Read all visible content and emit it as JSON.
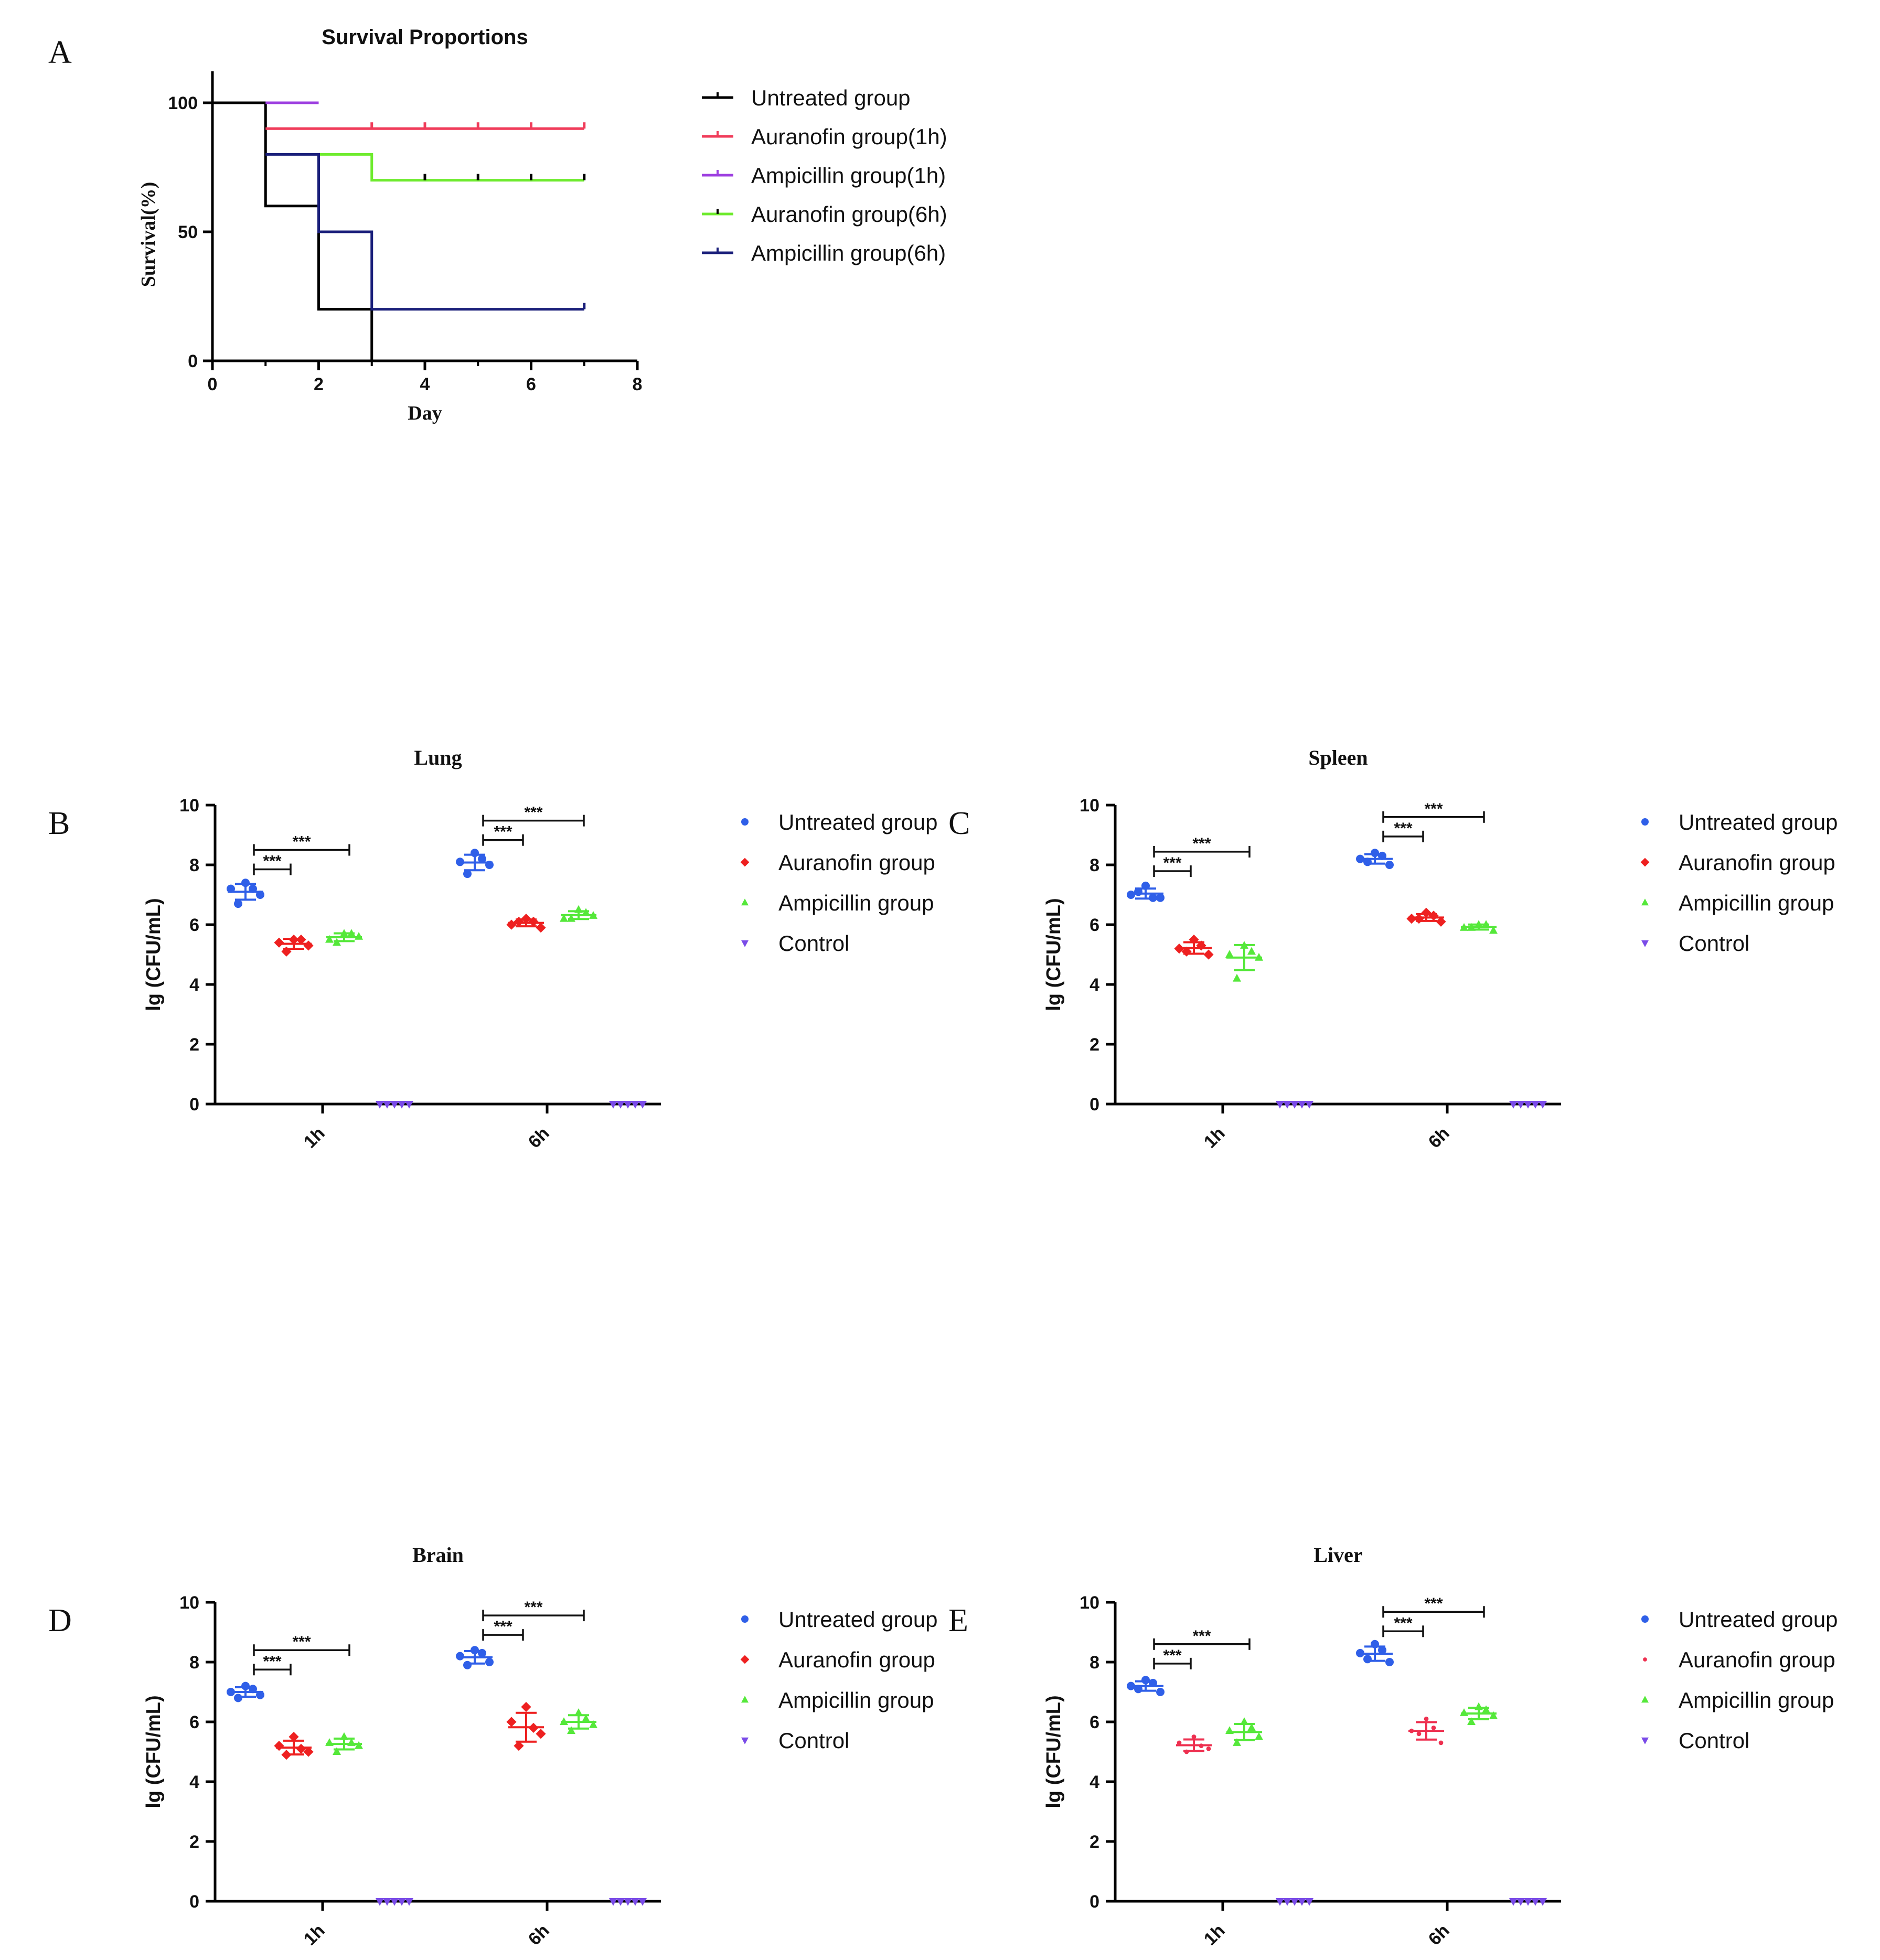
{
  "chart_data": [
    {
      "panel": "A",
      "type": "line",
      "title": "Survival Proportions",
      "xlabel": "Day",
      "ylabel": "Survival(%)",
      "xlim": [
        0,
        8
      ],
      "ylim": [
        0,
        100
      ],
      "xticks": [
        "0",
        "2",
        "4",
        "6",
        "8"
      ],
      "yticks": [
        "0",
        "50",
        "100"
      ],
      "series": [
        {
          "name": "Untreated group",
          "color": "#000000",
          "steps": [
            [
              0,
              100
            ],
            [
              1,
              60
            ],
            [
              2,
              20
            ],
            [
              3,
              0
            ]
          ],
          "censor": []
        },
        {
          "name": "Auranofin group(1h)",
          "color": "#f03c5a",
          "steps": [
            [
              1,
              90
            ],
            [
              7,
              90
            ]
          ],
          "censor": [
            3,
            4,
            5,
            6,
            7
          ]
        },
        {
          "name": "Ampicillin group(1h)",
          "color": "#9d3fe0",
          "steps": [
            [
              1,
              100
            ],
            [
              2,
              100
            ]
          ],
          "censor": []
        },
        {
          "name": "Auranofin group(6h)",
          "color": "#6eeb2e",
          "steps": [
            [
              2,
              80
            ],
            [
              3,
              70
            ],
            [
              7,
              70
            ]
          ],
          "censor": [
            4,
            5,
            6,
            7
          ]
        },
        {
          "name": "Ampicillin group(6h)",
          "color": "#1a1f7a",
          "steps": [
            [
              1,
              80
            ],
            [
              2,
              50
            ],
            [
              3,
              20
            ],
            [
              7,
              20
            ]
          ],
          "censor": [
            7
          ]
        }
      ]
    },
    {
      "panel": "B",
      "type": "scatter",
      "title": "Lung",
      "ylabel": "lg (CFU/mL)",
      "ylim": [
        0,
        10
      ],
      "yticks": [
        "0",
        "2",
        "4",
        "6",
        "8",
        "10"
      ],
      "categories": [
        "1h",
        "6h"
      ],
      "significance": [
        "***",
        "***",
        "***",
        "***"
      ],
      "series": [
        {
          "name": "Untreated group",
          "color": "#2f5fe8",
          "marker": "circle",
          "values": [
            [
              7.4,
              7.2,
              7.0,
              6.7,
              7.2
            ],
            [
              8.4,
              8.1,
              8.0,
              7.7,
              8.2
            ]
          ]
        },
        {
          "name": "Auranofin group",
          "color": "#ee2020",
          "marker": "diamond",
          "values": [
            [
              5.5,
              5.4,
              5.3,
              5.1,
              5.5
            ],
            [
              6.2,
              6.0,
              5.9,
              6.1,
              6.1
            ]
          ]
        },
        {
          "name": "Ampicillin group",
          "color": "#55e83a",
          "marker": "triangle",
          "values": [
            [
              5.7,
              5.5,
              5.6,
              5.4,
              5.7
            ],
            [
              6.5,
              6.2,
              6.3,
              6.2,
              6.4
            ]
          ]
        },
        {
          "name": "Control",
          "color": "#7a4be8",
          "marker": "triangle-down",
          "values": [
            [
              0,
              0,
              0,
              0,
              0
            ],
            [
              0,
              0,
              0,
              0,
              0
            ]
          ]
        }
      ]
    },
    {
      "panel": "C",
      "type": "scatter",
      "title": "Spleen",
      "ylabel": "lg (CFU/mL)",
      "ylim": [
        0,
        10
      ],
      "yticks": [
        "0",
        "2",
        "4",
        "6",
        "8",
        "10"
      ],
      "categories": [
        "1h",
        "6h"
      ],
      "significance": [
        "***",
        "***",
        "***",
        "***"
      ],
      "series": [
        {
          "name": "Untreated group",
          "color": "#2f5fe8",
          "marker": "circle",
          "values": [
            [
              7.3,
              7.0,
              6.9,
              7.1,
              6.9
            ],
            [
              8.4,
              8.2,
              8.0,
              8.1,
              8.3
            ]
          ]
        },
        {
          "name": "Auranofin group",
          "color": "#ee2020",
          "marker": "diamond",
          "values": [
            [
              5.5,
              5.2,
              5.0,
              5.1,
              5.3
            ],
            [
              6.4,
              6.2,
              6.1,
              6.2,
              6.3
            ]
          ]
        },
        {
          "name": "Ampicillin group",
          "color": "#55e83a",
          "marker": "triangle",
          "values": [
            [
              5.3,
              5.0,
              4.9,
              4.2,
              5.1
            ],
            [
              6.0,
              5.9,
              5.8,
              5.9,
              6.0
            ]
          ]
        },
        {
          "name": "Control",
          "color": "#7a4be8",
          "marker": "triangle-down",
          "values": [
            [
              0,
              0,
              0,
              0,
              0
            ],
            [
              0,
              0,
              0,
              0,
              0
            ]
          ]
        }
      ]
    },
    {
      "panel": "D",
      "type": "scatter",
      "title": "Brain",
      "ylabel": "lg (CFU/mL)",
      "ylim": [
        0,
        10
      ],
      "yticks": [
        "0",
        "2",
        "4",
        "6",
        "8",
        "10"
      ],
      "categories": [
        "1h",
        "6h"
      ],
      "significance": [
        "***",
        "***",
        "***",
        "***"
      ],
      "series": [
        {
          "name": "Untreated group",
          "color": "#2f5fe8",
          "marker": "circle",
          "values": [
            [
              7.2,
              7.0,
              6.9,
              6.8,
              7.1
            ],
            [
              8.4,
              8.2,
              8.0,
              7.9,
              8.3
            ]
          ]
        },
        {
          "name": "Auranofin group",
          "color": "#ee2020",
          "marker": "diamond",
          "values": [
            [
              5.5,
              5.2,
              5.0,
              4.9,
              5.1
            ],
            [
              6.5,
              6.0,
              5.6,
              5.2,
              5.8
            ]
          ]
        },
        {
          "name": "Ampicillin group",
          "color": "#55e83a",
          "marker": "triangle",
          "values": [
            [
              5.5,
              5.3,
              5.2,
              5.0,
              5.3
            ],
            [
              6.3,
              6.0,
              5.9,
              5.7,
              6.1
            ]
          ]
        },
        {
          "name": "Control",
          "color": "#7a4be8",
          "marker": "triangle-down",
          "values": [
            [
              0,
              0,
              0,
              0,
              0
            ],
            [
              0,
              0,
              0,
              0,
              0
            ]
          ]
        }
      ]
    },
    {
      "panel": "E",
      "type": "scatter",
      "title": "Liver",
      "ylabel": "lg (CFU/mL)",
      "ylim": [
        0,
        10
      ],
      "yticks": [
        "0",
        "2",
        "4",
        "6",
        "8",
        "10"
      ],
      "categories": [
        "1h",
        "6h"
      ],
      "significance": [
        "***",
        "***",
        "***",
        "***"
      ],
      "series": [
        {
          "name": "Untreated group",
          "color": "#2f5fe8",
          "marker": "circle",
          "values": [
            [
              7.4,
              7.2,
              7.0,
              7.1,
              7.3
            ],
            [
              8.6,
              8.3,
              8.0,
              8.1,
              8.4
            ]
          ]
        },
        {
          "name": "Auranofin group",
          "color": "#ee3050",
          "marker": "dot",
          "values": [
            [
              5.5,
              5.3,
              5.1,
              5.0,
              5.2
            ],
            [
              6.1,
              5.7,
              5.3,
              5.6,
              5.8
            ]
          ]
        },
        {
          "name": "Ampicillin group",
          "color": "#55e83a",
          "marker": "triangle",
          "values": [
            [
              6.0,
              5.7,
              5.5,
              5.3,
              5.8
            ],
            [
              6.5,
              6.3,
              6.2,
              6.0,
              6.4
            ]
          ]
        },
        {
          "name": "Control",
          "color": "#7a4be8",
          "marker": "triangle-down",
          "values": [
            [
              0,
              0,
              0,
              0,
              0
            ],
            [
              0,
              0,
              0,
              0,
              0
            ]
          ]
        }
      ]
    }
  ]
}
